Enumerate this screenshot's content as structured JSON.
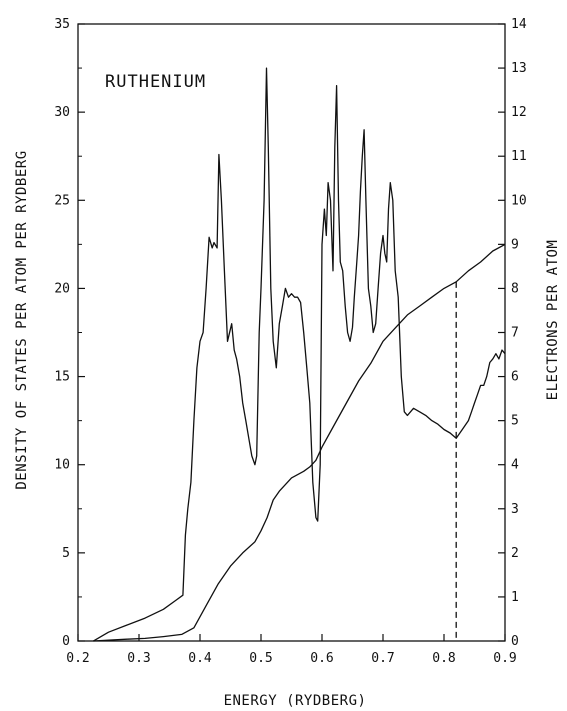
{
  "chart_data": {
    "type": "line",
    "label": "RUTHENIUM",
    "xlabel": "ENERGY (RYDBERG)",
    "ylabel_left": "DENSITY OF STATES PER ATOM PER RYDBERG",
    "ylabel_right": "ELECTRONS PER ATOM",
    "xlim": [
      0.2,
      0.9
    ],
    "ylim_left": [
      0,
      35
    ],
    "ylim_right": [
      0,
      14
    ],
    "x_ticks": [
      "0.2",
      "0.3",
      "0.4",
      "0.5",
      "0.6",
      "0.7",
      "0.8",
      "0.9"
    ],
    "y_ticks_left": [
      "0",
      "5",
      "10",
      "15",
      "20",
      "25",
      "30",
      "35"
    ],
    "y_ticks_right": [
      "0",
      "1",
      "2",
      "3",
      "4",
      "5",
      "6",
      "7",
      "8",
      "9",
      "10",
      "11",
      "12",
      "13",
      "14"
    ],
    "grid": false,
    "legend": "none",
    "color": "#111111",
    "series": [
      {
        "axis": "left",
        "x": [
          0.225,
          0.25,
          0.28,
          0.31,
          0.34,
          0.36,
          0.372,
          0.376,
          0.38,
          0.385,
          0.39,
          0.395,
          0.4,
          0.405,
          0.41,
          0.415,
          0.42,
          0.423,
          0.428,
          0.431,
          0.435,
          0.44,
          0.445,
          0.452,
          0.456,
          0.46,
          0.465,
          0.47,
          0.475,
          0.48,
          0.485,
          0.49,
          0.493,
          0.497,
          0.5,
          0.505,
          0.509,
          0.512,
          0.516,
          0.52,
          0.525,
          0.53,
          0.535,
          0.54,
          0.545,
          0.55,
          0.555,
          0.56,
          0.565,
          0.57,
          0.575,
          0.58,
          0.585,
          0.59,
          0.593,
          0.597,
          0.6,
          0.604,
          0.607,
          0.61,
          0.614,
          0.618,
          0.621,
          0.624,
          0.627,
          0.63,
          0.634,
          0.638,
          0.642,
          0.646,
          0.65,
          0.653,
          0.657,
          0.66,
          0.663,
          0.666,
          0.669,
          0.672,
          0.676,
          0.68,
          0.684,
          0.688,
          0.692,
          0.696,
          0.7,
          0.703,
          0.706,
          0.709,
          0.712,
          0.716,
          0.72,
          0.725,
          0.73,
          0.735,
          0.74,
          0.75,
          0.76,
          0.77,
          0.78,
          0.79,
          0.8,
          0.81,
          0.82,
          0.83,
          0.84,
          0.845,
          0.85,
          0.855,
          0.86,
          0.865,
          0.87,
          0.875,
          0.88,
          0.885,
          0.89,
          0.895,
          0.9
        ],
        "y": [
          0.0,
          0.5,
          0.9,
          1.3,
          1.8,
          2.3,
          2.6,
          6.0,
          7.5,
          9.0,
          12.5,
          15.5,
          17.0,
          17.5,
          20.0,
          22.9,
          22.3,
          22.6,
          22.3,
          27.6,
          25.0,
          21.0,
          17.0,
          18.0,
          16.5,
          16.0,
          15.0,
          13.5,
          12.5,
          11.5,
          10.5,
          10.0,
          10.5,
          17.5,
          20.0,
          25.0,
          32.5,
          28.0,
          20.0,
          17.0,
          15.5,
          18.0,
          19.0,
          20.0,
          19.5,
          19.7,
          19.5,
          19.5,
          19.2,
          17.5,
          15.5,
          13.5,
          9.0,
          7.0,
          6.8,
          10.0,
          22.5,
          24.5,
          23.0,
          26.0,
          25.0,
          21.0,
          28.0,
          31.5,
          25.0,
          21.5,
          21.0,
          19.0,
          17.5,
          17.0,
          17.8,
          19.5,
          21.5,
          23.0,
          25.5,
          27.5,
          29.0,
          25.0,
          20.0,
          19.0,
          17.5,
          18.0,
          20.0,
          22.0,
          23.0,
          22.0,
          21.5,
          24.5,
          26.0,
          25.0,
          21.0,
          19.5,
          15.0,
          13.0,
          12.8,
          13.2,
          13.0,
          12.8,
          12.5,
          12.3,
          12.0,
          11.8,
          11.5,
          12.0,
          12.5,
          13.0,
          13.5,
          14.0,
          14.5,
          14.5,
          15.0,
          15.8,
          16.0,
          16.3,
          16.0,
          16.5,
          16.3
        ]
      },
      {
        "axis": "right",
        "x": [
          0.225,
          0.25,
          0.28,
          0.31,
          0.34,
          0.37,
          0.39,
          0.41,
          0.43,
          0.45,
          0.47,
          0.49,
          0.5,
          0.51,
          0.52,
          0.53,
          0.55,
          0.57,
          0.58,
          0.59,
          0.6,
          0.62,
          0.64,
          0.66,
          0.68,
          0.7,
          0.72,
          0.74,
          0.76,
          0.78,
          0.8,
          0.82,
          0.84,
          0.86,
          0.88,
          0.9
        ],
        "y": [
          0.0,
          0.02,
          0.04,
          0.06,
          0.1,
          0.15,
          0.3,
          0.8,
          1.3,
          1.7,
          2.0,
          2.25,
          2.5,
          2.8,
          3.2,
          3.4,
          3.7,
          3.85,
          3.95,
          4.1,
          4.4,
          4.9,
          5.4,
          5.9,
          6.3,
          6.8,
          7.1,
          7.4,
          7.6,
          7.8,
          8.0,
          8.15,
          8.4,
          8.6,
          8.85,
          9.0
        ]
      }
    ],
    "marker_line": {
      "x": 0.82,
      "style": "dashed"
    }
  }
}
